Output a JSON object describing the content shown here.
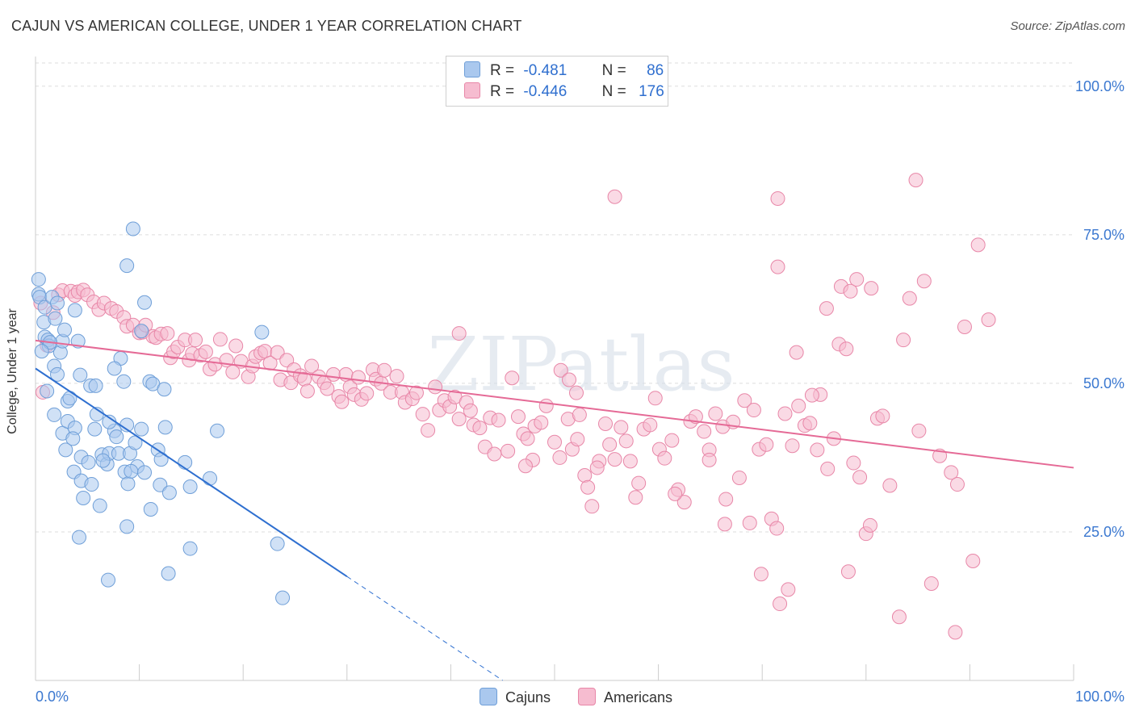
{
  "title": "CAJUN VS AMERICAN COLLEGE, UNDER 1 YEAR CORRELATION CHART",
  "source": "Source: ZipAtlas.com",
  "watermark": "ZIPatlas",
  "colors": {
    "cajuns_fill": "#aac8ee",
    "cajuns_stroke": "#6f9fd8",
    "cajuns_line": "#2e6fd0",
    "americans_fill": "#f6bcd0",
    "americans_stroke": "#e887a8",
    "americans_line": "#e56a96",
    "tick_label": "#3b78d0",
    "grid": "#dddddd"
  },
  "legend": {
    "rows": [
      {
        "r_label": "R =",
        "r_value": "-0.481",
        "n_label": "N =",
        "n_value": "86",
        "color": "#aac8ee"
      },
      {
        "r_label": "R =",
        "r_value": "-0.446",
        "n_label": "N =",
        "n_value": "176",
        "color": "#f6bcd0"
      }
    ]
  },
  "chart_data": {
    "type": "scatter",
    "title": "CAJUN VS AMERICAN COLLEGE, UNDER 1 YEAR CORRELATION CHART",
    "xlabel": "",
    "ylabel": "College, Under 1 year",
    "xlim": [
      0,
      100
    ],
    "ylim": [
      0,
      105
    ],
    "x_tick_labels": [
      "0.0%",
      "100.0%"
    ],
    "y_ticks": [
      25,
      50,
      75,
      100
    ],
    "y_tick_labels": [
      "25.0%",
      "50.0%",
      "75.0%",
      "100.0%"
    ],
    "grid": true,
    "legend_position": "top-center",
    "series": [
      {
        "name": "Cajuns",
        "r": -0.481,
        "n": 86,
        "trend": {
          "x1": 0,
          "y1": 52.5,
          "x2": 30,
          "y2": 17.5,
          "dashed_to_x": 45
        },
        "points": [
          [
            0.3,
            67.5
          ],
          [
            0.3,
            65
          ],
          [
            0.4,
            64.5
          ],
          [
            0.8,
            60.3
          ],
          [
            0.9,
            57.8
          ],
          [
            1.2,
            57.3
          ],
          [
            1.3,
            56.3
          ],
          [
            0.9,
            62.8
          ],
          [
            1.1,
            48.7
          ],
          [
            1.6,
            64.5
          ],
          [
            1.9,
            60.9
          ],
          [
            2.1,
            63.5
          ],
          [
            2.4,
            55.2
          ],
          [
            2.6,
            57.1
          ],
          [
            1.8,
            52.9
          ],
          [
            2.1,
            51.5
          ],
          [
            2.8,
            59
          ],
          [
            3.1,
            47
          ],
          [
            3.3,
            47.5
          ],
          [
            3.8,
            62.3
          ],
          [
            4.1,
            57.1
          ],
          [
            4.3,
            51.4
          ],
          [
            5.3,
            49.6
          ],
          [
            5.8,
            49.6
          ],
          [
            1.8,
            44.7
          ],
          [
            2.6,
            41.6
          ],
          [
            3.1,
            43.6
          ],
          [
            3.8,
            42.5
          ],
          [
            2.9,
            38.8
          ],
          [
            3.6,
            40.7
          ],
          [
            4.4,
            37.6
          ],
          [
            5.1,
            36.7
          ],
          [
            5.7,
            42.3
          ],
          [
            5.9,
            44.8
          ],
          [
            6.4,
            38
          ],
          [
            6.9,
            36.4
          ],
          [
            7.1,
            38.2
          ],
          [
            7.6,
            42
          ],
          [
            7.8,
            41
          ],
          [
            8,
            38.2
          ],
          [
            8.2,
            54.2
          ],
          [
            8.5,
            50.3
          ],
          [
            8.8,
            43
          ],
          [
            9.1,
            38.2
          ],
          [
            9.6,
            40
          ],
          [
            9.8,
            36
          ],
          [
            10.2,
            42.3
          ],
          [
            11,
            50.3
          ],
          [
            11.3,
            49.9
          ],
          [
            11.8,
            38.8
          ],
          [
            12.1,
            37.2
          ],
          [
            12.5,
            42.6
          ],
          [
            12.4,
            49
          ],
          [
            3.7,
            35.1
          ],
          [
            4.4,
            33.6
          ],
          [
            4.6,
            30.7
          ],
          [
            5.4,
            33
          ],
          [
            6.2,
            29.4
          ],
          [
            8.6,
            35.1
          ],
          [
            8.9,
            33.1
          ],
          [
            9.2,
            35.2
          ],
          [
            10.5,
            35
          ],
          [
            11.1,
            28.8
          ],
          [
            12,
            32.9
          ],
          [
            12.9,
            31.6
          ],
          [
            14.9,
            32.6
          ],
          [
            14.4,
            36.7
          ],
          [
            16.8,
            34
          ],
          [
            17.5,
            42
          ],
          [
            21.8,
            58.6
          ],
          [
            10.2,
            58.8
          ],
          [
            10.5,
            63.6
          ],
          [
            8.8,
            69.8
          ],
          [
            9.4,
            76
          ],
          [
            7.1,
            43.5
          ],
          [
            6.5,
            37
          ],
          [
            4.2,
            24.1
          ],
          [
            7,
            16.9
          ],
          [
            8.8,
            25.9
          ],
          [
            12.8,
            18
          ],
          [
            14.9,
            22.2
          ],
          [
            23.3,
            23
          ],
          [
            23.8,
            13.9
          ],
          [
            7.6,
            52.5
          ],
          [
            1.4,
            56.9
          ],
          [
            0.6,
            55.4
          ]
        ]
      },
      {
        "name": "Americans",
        "r": -0.446,
        "n": 176,
        "trend": {
          "x1": 0,
          "y1": 57.2,
          "x2": 100,
          "y2": 35.8
        },
        "points": [
          [
            0.5,
            63.5
          ],
          [
            0.7,
            48.5
          ],
          [
            1.1,
            56.4
          ],
          [
            1.7,
            61.9
          ],
          [
            2.2,
            64.9
          ],
          [
            2.6,
            65.6
          ],
          [
            3.4,
            65.5
          ],
          [
            3.8,
            64.8
          ],
          [
            4.1,
            65.4
          ],
          [
            4.6,
            65.7
          ],
          [
            5,
            64.9
          ],
          [
            5.6,
            63.7
          ],
          [
            6.1,
            62.4
          ],
          [
            6.6,
            63.5
          ],
          [
            7.3,
            62.6
          ],
          [
            7.8,
            62.1
          ],
          [
            8.5,
            61.1
          ],
          [
            8.8,
            59.6
          ],
          [
            9.4,
            59.8
          ],
          [
            10,
            58.5
          ],
          [
            10.3,
            58.6
          ],
          [
            10.6,
            59.8
          ],
          [
            11.3,
            57.9
          ],
          [
            11.6,
            57.7
          ],
          [
            12.1,
            58.3
          ],
          [
            12.7,
            58.4
          ],
          [
            13,
            54.3
          ],
          [
            13.3,
            55.3
          ],
          [
            13.7,
            56.1
          ],
          [
            14.4,
            57.3
          ],
          [
            14.8,
            53.9
          ],
          [
            15.1,
            55
          ],
          [
            15.4,
            57.3
          ],
          [
            15.9,
            54.7
          ],
          [
            16.4,
            55.3
          ],
          [
            16.8,
            52.4
          ],
          [
            17.3,
            53.2
          ],
          [
            17.8,
            57.4
          ],
          [
            18.4,
            53.9
          ],
          [
            19,
            51.9
          ],
          [
            19.3,
            56.3
          ],
          [
            19.8,
            53.7
          ],
          [
            20.5,
            51.1
          ],
          [
            20.9,
            52.9
          ],
          [
            21.2,
            54.5
          ],
          [
            21.7,
            55.1
          ],
          [
            22.1,
            55.4
          ],
          [
            22.6,
            53.4
          ],
          [
            23.3,
            55.2
          ],
          [
            23.6,
            50.6
          ],
          [
            24.2,
            53.9
          ],
          [
            24.6,
            50.1
          ],
          [
            24.9,
            52.3
          ],
          [
            25.5,
            51.3
          ],
          [
            25.9,
            50.7
          ],
          [
            26.2,
            48.7
          ],
          [
            26.6,
            52.9
          ],
          [
            27.3,
            51.1
          ],
          [
            27.8,
            50.1
          ],
          [
            28.1,
            49.1
          ],
          [
            28.7,
            51.5
          ],
          [
            29.2,
            47.8
          ],
          [
            29.5,
            46.9
          ],
          [
            29.9,
            51.5
          ],
          [
            30.3,
            49.4
          ],
          [
            30.7,
            48.1
          ],
          [
            31.1,
            51
          ],
          [
            31.4,
            47.3
          ],
          [
            31.9,
            48.3
          ],
          [
            32.5,
            52.3
          ],
          [
            32.8,
            50.7
          ],
          [
            33.3,
            50
          ],
          [
            33.6,
            52.2
          ],
          [
            34.2,
            48.5
          ],
          [
            34.8,
            51.2
          ],
          [
            35.3,
            48.5
          ],
          [
            35.6,
            46.8
          ],
          [
            36.3,
            47.4
          ],
          [
            36.7,
            48.4
          ],
          [
            37.3,
            44.8
          ],
          [
            37.8,
            42.1
          ],
          [
            38.5,
            49.4
          ],
          [
            38.9,
            45.5
          ],
          [
            39.4,
            47.1
          ],
          [
            39.9,
            46.1
          ],
          [
            40.4,
            47.7
          ],
          [
            40.8,
            44
          ],
          [
            41.5,
            46.8
          ],
          [
            41.9,
            45.4
          ],
          [
            42.2,
            43
          ],
          [
            42.8,
            42.5
          ],
          [
            43.3,
            39.3
          ],
          [
            43.8,
            44.2
          ],
          [
            44.2,
            38.1
          ],
          [
            44.6,
            43.8
          ],
          [
            45.5,
            38.6
          ],
          [
            45.9,
            50.9
          ],
          [
            46.5,
            44.4
          ],
          [
            47,
            41.5
          ],
          [
            47.4,
            40.7
          ],
          [
            47.9,
            37.1
          ],
          [
            48.1,
            42.8
          ],
          [
            48.7,
            43.4
          ],
          [
            49.2,
            46.2
          ],
          [
            50,
            40.1
          ],
          [
            50.5,
            37.5
          ],
          [
            51.3,
            44
          ],
          [
            51.7,
            38.9
          ],
          [
            52.1,
            48.4
          ],
          [
            52.4,
            44.7
          ],
          [
            52.9,
            34.5
          ],
          [
            53.2,
            32.5
          ],
          [
            53.6,
            29.3
          ],
          [
            54.3,
            36.9
          ],
          [
            54.9,
            43.2
          ],
          [
            55.3,
            39.7
          ],
          [
            55.8,
            37.2
          ],
          [
            56.4,
            42.6
          ],
          [
            56.9,
            40.3
          ],
          [
            57.3,
            36.9
          ],
          [
            57.8,
            30.8
          ],
          [
            58.1,
            33.2
          ],
          [
            58.6,
            42.3
          ],
          [
            59.2,
            43
          ],
          [
            59.7,
            47.5
          ],
          [
            60.1,
            38.9
          ],
          [
            60.6,
            37.4
          ],
          [
            61.3,
            40.4
          ],
          [
            61.9,
            32.1
          ],
          [
            62.5,
            30
          ],
          [
            63.1,
            43.6
          ],
          [
            63.6,
            44.4
          ],
          [
            64.4,
            41.9
          ],
          [
            64.9,
            38.8
          ],
          [
            65.5,
            44.9
          ],
          [
            66.2,
            42.7
          ],
          [
            66.5,
            30.5
          ],
          [
            67.2,
            43.5
          ],
          [
            67.8,
            34.1
          ],
          [
            68.3,
            47.1
          ],
          [
            68.8,
            26.5
          ],
          [
            69.2,
            45.5
          ],
          [
            69.7,
            38.9
          ],
          [
            70.4,
            39.7
          ],
          [
            70.9,
            27.2
          ],
          [
            71.4,
            25.6
          ],
          [
            72.2,
            44.9
          ],
          [
            72.9,
            39.5
          ],
          [
            73.5,
            46.2
          ],
          [
            74.1,
            42.9
          ],
          [
            74.6,
            43.3
          ],
          [
            75.3,
            38.8
          ],
          [
            75.6,
            48.1
          ],
          [
            76.3,
            35.6
          ],
          [
            76.9,
            40.7
          ],
          [
            77.4,
            56.6
          ],
          [
            78.1,
            55.8
          ],
          [
            78.8,
            36.6
          ],
          [
            79.4,
            34.2
          ],
          [
            80,
            24.7
          ],
          [
            80.4,
            26.1
          ],
          [
            81.1,
            44.1
          ],
          [
            81.6,
            44.5
          ],
          [
            82.3,
            32.8
          ],
          [
            83.6,
            57.3
          ],
          [
            84.2,
            64.3
          ],
          [
            85.1,
            42
          ],
          [
            85.6,
            67.2
          ],
          [
            86.3,
            16.3
          ],
          [
            87.1,
            37.8
          ],
          [
            88.2,
            35
          ],
          [
            88.8,
            33
          ],
          [
            89.5,
            59.5
          ],
          [
            90.3,
            20.1
          ],
          [
            90.8,
            73.3
          ],
          [
            91.8,
            60.7
          ],
          [
            71.5,
            69.6
          ],
          [
            76.2,
            62.6
          ],
          [
            77.6,
            66.3
          ],
          [
            78.5,
            65.5
          ],
          [
            79.1,
            67.5
          ],
          [
            80.5,
            66
          ],
          [
            73.3,
            55.2
          ],
          [
            71.5,
            81.1
          ],
          [
            84.8,
            84.2
          ],
          [
            50.6,
            52.2
          ],
          [
            51.4,
            50.6
          ],
          [
            55.8,
            81.4
          ],
          [
            40.8,
            58.4
          ],
          [
            47.2,
            36.1
          ],
          [
            54.1,
            35.8
          ],
          [
            52.2,
            40.6
          ],
          [
            64.9,
            37.1
          ],
          [
            69.9,
            17.9
          ],
          [
            71.7,
            12.9
          ],
          [
            72.5,
            15.3
          ],
          [
            74.8,
            48
          ],
          [
            83.2,
            10.7
          ],
          [
            88.6,
            8.1
          ],
          [
            78.3,
            18.3
          ],
          [
            66.4,
            26.3
          ],
          [
            61.6,
            31.4
          ]
        ]
      }
    ]
  },
  "bottom_legend": {
    "items": [
      {
        "label": "Cajuns",
        "color": "#aac8ee"
      },
      {
        "label": "Americans",
        "color": "#f6bcd0"
      }
    ]
  }
}
